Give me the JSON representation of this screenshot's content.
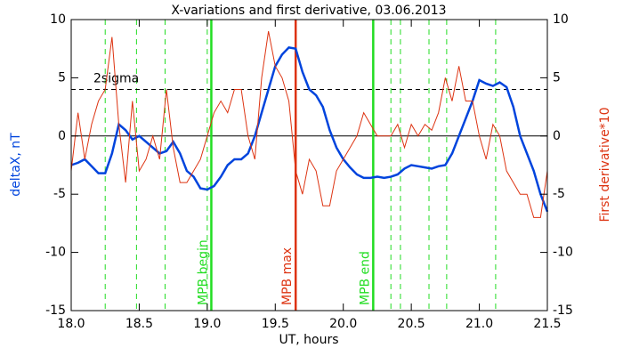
{
  "chart_data": {
    "type": "line",
    "title": "X-variations and first derivative, 03.06.2013",
    "xlabel": "UT, hours",
    "ylabel": "deltaX, nT",
    "y2label": "First derivative*10",
    "xlim": [
      18,
      21.5
    ],
    "xticks": [
      {
        "value": 18,
        "label": "18.0"
      },
      {
        "value": 18.5,
        "label": "18.5"
      },
      {
        "value": 19,
        "label": "19.0"
      },
      {
        "value": 19.5,
        "label": "19.5"
      },
      {
        "value": 20,
        "label": "20.0"
      },
      {
        "value": 20.5,
        "label": "20.5"
      },
      {
        "value": 21,
        "label": "21.0"
      },
      {
        "value": 21.5,
        "label": "21.5"
      }
    ],
    "ylim": [
      -15,
      10
    ],
    "yticks": [
      -15,
      -10,
      -5,
      0,
      5,
      10
    ],
    "y2lim": [
      -15,
      10
    ],
    "y2ticks": [
      -15,
      -10,
      -5,
      0,
      5,
      10
    ],
    "x": [
      18,
      18.05,
      18.1,
      18.15,
      18.2,
      18.25,
      18.3,
      18.35,
      18.4,
      18.45,
      18.5,
      18.55,
      18.6,
      18.65,
      18.7,
      18.75,
      18.8,
      18.85,
      18.9,
      18.95,
      19,
      19.05,
      19.1,
      19.15,
      19.2,
      19.25,
      19.3,
      19.35,
      19.4,
      19.45,
      19.5,
      19.55,
      19.6,
      19.65,
      19.7,
      19.75,
      19.8,
      19.85,
      19.9,
      19.95,
      20,
      20.05,
      20.1,
      20.15,
      20.2,
      20.25,
      20.3,
      20.35,
      20.4,
      20.45,
      20.5,
      20.55,
      20.6,
      20.65,
      20.7,
      20.75,
      20.8,
      20.85,
      20.9,
      20.95,
      21,
      21.05,
      21.1,
      21.15,
      21.2,
      21.25,
      21.3,
      21.35,
      21.4,
      21.45,
      21.5
    ],
    "series": [
      {
        "name": "deltaX",
        "color": "#0044dd",
        "axis": "y",
        "values": [
          -2.5,
          -2.3,
          -2.0,
          -2.6,
          -3.2,
          -3.2,
          -1.5,
          1.0,
          0.5,
          -0.3,
          0,
          -0.5,
          -1,
          -1.5,
          -1.3,
          -0.5,
          -1.5,
          -3,
          -3.5,
          -4.5,
          -4.6,
          -4.3,
          -3.5,
          -2.5,
          -2,
          -2.0,
          -1.5,
          0,
          2,
          4,
          6,
          7,
          7.6,
          7.5,
          5.5,
          4,
          3.5,
          2.5,
          0.5,
          -1,
          -2,
          -2.7,
          -3.3,
          -3.6,
          -3.6,
          -3.5,
          -3.6,
          -3.5,
          -3.3,
          -2.8,
          -2.5,
          -2.6,
          -2.7,
          -2.8,
          -2.6,
          -2.5,
          -1.5,
          0,
          1.5,
          3,
          4.8,
          4.5,
          4.3,
          4.6,
          4.2,
          2.5,
          0,
          -1.5,
          -3,
          -5,
          -6.5
        ]
      },
      {
        "name": "First derivative*10",
        "color": "#dd3311",
        "axis": "y2",
        "values": [
          -3,
          2,
          -2,
          1,
          3,
          4,
          8.5,
          1,
          -4,
          3,
          -3,
          -2,
          0,
          -2,
          4,
          -1,
          -4,
          -4,
          -3,
          -2,
          0,
          2,
          3,
          2,
          4,
          4,
          0,
          -2,
          5,
          9,
          6,
          5,
          3,
          -3,
          -5,
          -2,
          -3,
          -6,
          -6,
          -3,
          -2,
          -1,
          0,
          2,
          1,
          0,
          0,
          0,
          1,
          -1,
          1,
          0,
          1,
          0.5,
          2,
          5,
          3,
          6,
          3,
          3,
          0,
          -2,
          1,
          0,
          -3,
          -4,
          -5,
          -5,
          -7,
          -7,
          -3
        ]
      }
    ],
    "threshold": {
      "value": 4,
      "label": "2sigma"
    },
    "zero_line": 0,
    "dashed_vlines": [
      18.25,
      18.48,
      18.69,
      19.0,
      20.35,
      20.42,
      20.63,
      20.76,
      21.12
    ],
    "vlines": [
      {
        "x": 19.03,
        "label": "MPB begin",
        "color": "#22dd22"
      },
      {
        "x": 19.65,
        "label": "MPB max",
        "color": "#dd3311"
      },
      {
        "x": 20.22,
        "label": "MPB end",
        "color": "#22dd22"
      }
    ]
  }
}
